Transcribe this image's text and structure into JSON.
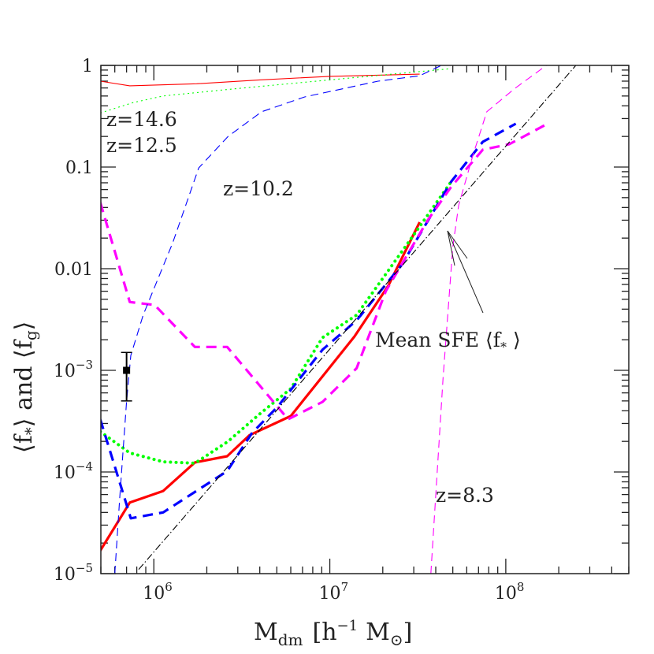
{
  "chart_data": {
    "type": "line",
    "title": "",
    "xlabel": {
      "main": "M",
      "sub": "dm",
      "bracket_open": "[",
      "h": "h",
      "h_exp": "−1",
      "msun": "M",
      "msun_sub": "⊙",
      "bracket_close": "]"
    },
    "ylabel": {
      "f_star": "⟨f",
      "star_sub": "*",
      "close1": "⟩",
      "and": " and ",
      "f_g": "⟨f",
      "g_sub": "g",
      "close2": "⟩"
    },
    "xscale": "log",
    "yscale": "log",
    "xlim": [
      500000,
      500000000
    ],
    "ylim": [
      1e-05,
      1
    ],
    "grid": false,
    "x_ticks": [
      {
        "value": 1000000,
        "base": "10",
        "exp": "6"
      },
      {
        "value": 10000000,
        "base": "10",
        "exp": "7"
      },
      {
        "value": 100000000,
        "base": "10",
        "exp": "8"
      }
    ],
    "y_ticks": [
      {
        "value": 1,
        "base": "1",
        "exp": ""
      },
      {
        "value": 0.1,
        "base": "0.1",
        "exp": ""
      },
      {
        "value": 0.01,
        "base": "0.01",
        "exp": ""
      },
      {
        "value": 0.001,
        "base": "10",
        "exp": "−3"
      },
      {
        "value": 0.0001,
        "base": "10",
        "exp": "−4"
      },
      {
        "value": 1e-05,
        "base": "10",
        "exp": "−5"
      }
    ],
    "series": [
      {
        "key": "fstar-red",
        "color": "#ff0000",
        "style": "solid",
        "weight": "thick",
        "x": [
          496000,
          730000,
          1130000,
          1710000,
          2610000,
          3500000,
          6000000,
          13800000,
          21500000,
          32400000
        ],
        "y": [
          1.68e-05,
          5e-05,
          6.5e-05,
          0.000124,
          0.000143,
          0.00023,
          0.000355,
          0.00215,
          0.0068,
          0.0287
        ]
      },
      {
        "key": "fstar-green",
        "color": "#00ff00",
        "style": "dotted",
        "weight": "thick",
        "x": [
          496000,
          730000,
          1130000,
          1710000,
          2640000,
          3980000,
          6000000,
          9100000,
          14200000,
          32400000,
          49000000
        ],
        "y": [
          0.00025,
          0.000154,
          0.000126,
          0.000122,
          0.0002,
          0.00037,
          0.00066,
          0.0021,
          0.0035,
          0.026,
          0.072
        ]
      },
      {
        "key": "fstar-blue",
        "color": "#0000ff",
        "style": "dashed",
        "weight": "thick",
        "x": [
          496000,
          740000,
          1130000,
          2610000,
          3600000,
          5060000,
          9100000,
          14200000,
          25500000,
          49000000,
          74000000,
          114000000
        ],
        "y": [
          0.00033,
          3.5e-05,
          4e-05,
          0.000102,
          0.00024,
          0.00044,
          0.0016,
          0.0031,
          0.0108,
          0.072,
          0.177,
          0.267
        ]
      },
      {
        "key": "fstar-magenta",
        "color": "#ff00ff",
        "style": "dashed",
        "weight": "thick",
        "x": [
          496000,
          730000,
          1010000,
          1710000,
          2610000,
          5800000,
          9100000,
          14200000,
          20800000,
          36000000,
          49000000,
          74000000,
          105000000,
          170000000
        ],
        "y": [
          0.045,
          0.0047,
          0.0044,
          0.0017,
          0.0017,
          0.00033,
          0.00049,
          0.00105,
          0.006,
          0.03,
          0.064,
          0.148,
          0.168,
          0.263
        ]
      },
      {
        "key": "fgas-red",
        "color": "#ff0000",
        "style": "solid",
        "weight": "thin",
        "x": [
          496000,
          730000,
          1750000,
          4000000,
          10000000,
          32400000
        ],
        "y": [
          0.7,
          0.63,
          0.66,
          0.72,
          0.78,
          0.82
        ]
      },
      {
        "key": "fgas-green",
        "color": "#00ff00",
        "style": "dotted",
        "weight": "thin",
        "x": [
          496000,
          760000,
          1130000,
          2640000,
          10000000,
          49000000
        ],
        "y": [
          0.34,
          0.43,
          0.5,
          0.58,
          0.72,
          0.93
        ]
      },
      {
        "key": "fgas-blue",
        "color": "#0000ff",
        "style": "dashed",
        "weight": "thin",
        "x": [
          600000,
          640000,
          700000,
          740000,
          870000,
          1280000,
          1800000,
          2640000,
          4100000,
          7200000,
          18800000,
          32400000,
          43000000
        ],
        "y": [
          1e-05,
          5.5e-05,
          0.00049,
          0.0014,
          0.0035,
          0.018,
          0.098,
          0.2,
          0.35,
          0.49,
          0.7,
          0.79,
          1.0
        ]
      },
      {
        "key": "fgas-magenta",
        "color": "#ff00ff",
        "style": "dashed",
        "weight": "thin",
        "x": [
          37500000,
          44000000,
          50000000,
          54000000,
          65000000,
          78000000,
          112000000,
          170000000
        ],
        "y": [
          1e-05,
          0.00084,
          0.0165,
          0.042,
          0.13,
          0.35,
          0.59,
          1.0
        ]
      },
      {
        "key": "mean-sfe-fit",
        "color": "#000000",
        "style": "dash-dot",
        "weight": "thin",
        "x": [
          820000,
          250000000
        ],
        "y": [
          1.1e-05,
          1.0
        ]
      }
    ],
    "data_point": {
      "x": 700000,
      "y": 0.001,
      "y_err_low": 0.0005,
      "y_err_high": 0.0015,
      "marker": "square",
      "color": "#000000"
    },
    "annotations": {
      "z146": "z=14.6",
      "z125": "z=12.5",
      "z102": "z=10.2",
      "z83": "z=8.3",
      "mean_sfe": "Mean SFE ⟨f",
      "mean_sfe_sub": "*",
      "mean_sfe_close": " ⟩"
    }
  }
}
